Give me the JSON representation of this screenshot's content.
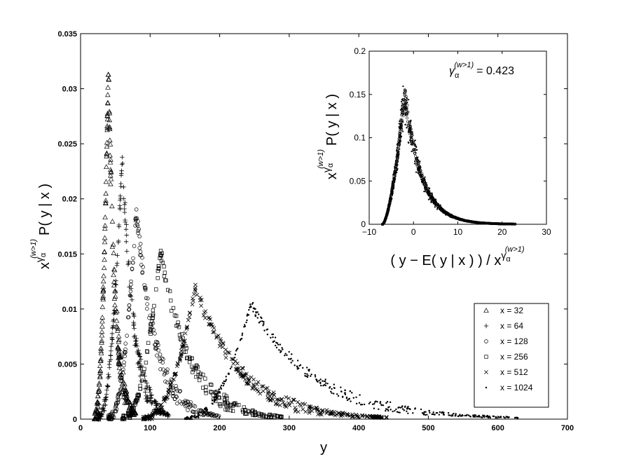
{
  "chart_data": [
    {
      "type": "scatter",
      "title": "",
      "xlabel": "y",
      "ylabel": "x^{γ_α^{(w>1)}} P( y | x )",
      "ylabel_parts": {
        "base": "x",
        "exp": "γ",
        "sub": "α",
        "supsup": "(w>1)",
        "main": "P( y | x )"
      },
      "xlim": [
        0,
        700
      ],
      "ylim": [
        0,
        0.035
      ],
      "x_ticks": [
        0,
        100,
        200,
        300,
        400,
        500,
        600,
        700
      ],
      "y_ticks": [
        0,
        0.005,
        0.01,
        0.015,
        0.02,
        0.025,
        0.03,
        0.035
      ],
      "x_tick_labels": [
        "0",
        "100",
        "200",
        "300",
        "400",
        "500",
        "600",
        "700"
      ],
      "y_tick_labels": [
        "0",
        "0.005",
        "0.01",
        "0.015",
        "0.02",
        "0.025",
        "0.03",
        "0.035"
      ],
      "grid": false,
      "legend_position": "lower-right",
      "series": [
        {
          "name": "x = 32",
          "marker": "triangle",
          "min_x": 20,
          "peak_x": 40,
          "peak_y": 0.032,
          "max_x": 80
        },
        {
          "name": "x = 64",
          "marker": "plus",
          "min_x": 25,
          "peak_x": 60,
          "peak_y": 0.024,
          "max_x": 130
        },
        {
          "name": "x = 128",
          "marker": "circle",
          "min_x": 40,
          "peak_x": 80,
          "peak_y": 0.019,
          "max_x": 200
        },
        {
          "name": "x = 256",
          "marker": "square",
          "min_x": 60,
          "peak_x": 115,
          "peak_y": 0.0155,
          "max_x": 290
        },
        {
          "name": "x = 512",
          "marker": "cross",
          "min_x": 90,
          "peak_x": 165,
          "peak_y": 0.012,
          "max_x": 440
        },
        {
          "name": "x = 1024",
          "marker": "dot",
          "min_x": 150,
          "peak_x": 245,
          "peak_y": 0.0105,
          "max_x": 630
        }
      ]
    },
    {
      "type": "scatter",
      "title": "",
      "xlabel": "( y − E( y | x ) ) / x^{γ_α^{(w>1)}}",
      "xlabel_parts": {
        "main": "( y − E( y | x ) ) / x",
        "exp": "γ",
        "sub": "α",
        "supsup": "(w>1)"
      },
      "ylabel": "x^{γ_α^{(w>1)}} P( y | x )",
      "xlim": [
        -10,
        30
      ],
      "ylim": [
        0,
        0.2
      ],
      "x_ticks": [
        -10,
        0,
        10,
        20,
        30
      ],
      "y_ticks": [
        0,
        0.05,
        0.1,
        0.15,
        0.2
      ],
      "x_tick_labels": [
        "−10",
        "0",
        "10",
        "20",
        "30"
      ],
      "y_tick_labels": [
        "0",
        "0.05",
        "0.1",
        "0.15",
        "0.2"
      ],
      "grid": false,
      "annotation": {
        "lhs_base": "γ",
        "lhs_sub": "α",
        "lhs_sup": "(w>1)",
        "rhs": "= 0.423"
      },
      "collapse": {
        "min_x": -7,
        "peak_x": -2,
        "peak_y": 0.15,
        "max_x": 23
      }
    }
  ]
}
